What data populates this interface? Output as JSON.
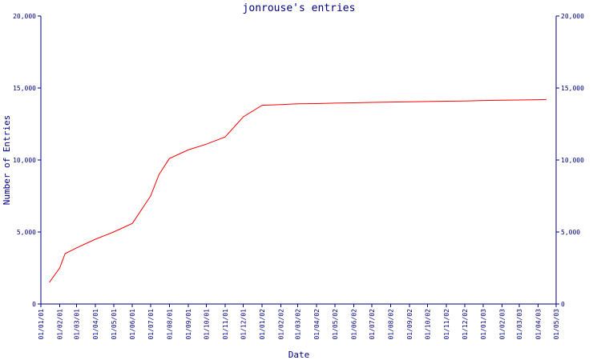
{
  "colors": {
    "axis": "#000080",
    "series": "#ff0000",
    "background": "#ffffff"
  },
  "chart_data": {
    "type": "line",
    "title": "jonrouse's entries",
    "xlabel": "Date",
    "ylabel": "Number of Entries",
    "ylim": [
      0,
      20000
    ],
    "y_ticks": [
      0,
      5000,
      10000,
      15000,
      20000
    ],
    "y_tick_labels": [
      "0",
      "5,000",
      "10,000",
      "15,000",
      "20,000"
    ],
    "y_right_tick_labels": [
      "0",
      "5,000",
      "10,000",
      "15,000",
      "20,000"
    ],
    "x_tick_labels": [
      "01/01/01",
      "01/02/01",
      "01/03/01",
      "01/04/01",
      "01/05/01",
      "01/06/01",
      "01/07/01",
      "01/08/01",
      "01/09/01",
      "01/10/01",
      "01/11/01",
      "01/12/01",
      "01/01/02",
      "01/02/02",
      "01/03/02",
      "01/04/02",
      "01/05/02",
      "01/06/02",
      "01/07/02",
      "01/08/02",
      "01/09/02",
      "01/10/02",
      "01/11/02",
      "01/12/02",
      "01/01/03",
      "01/02/03",
      "01/03/03",
      "01/04/03",
      "01/05/03"
    ],
    "grid": false,
    "series": [
      {
        "x": [
          "15/01/01",
          "01/02/01",
          "10/02/01",
          "01/03/01",
          "01/04/01",
          "01/05/01",
          "01/06/01",
          "01/07/01",
          "15/07/01",
          "01/08/01",
          "01/09/01",
          "01/10/01",
          "01/11/01",
          "01/12/01",
          "01/01/02",
          "01/02/02",
          "01/03/02",
          "01/04/02",
          "01/05/02",
          "01/06/02",
          "01/07/02",
          "01/08/02",
          "01/09/02",
          "01/10/02",
          "01/11/02",
          "01/12/02",
          "01/01/03",
          "01/02/03",
          "01/03/03",
          "01/04/03",
          "15/04/03"
        ],
        "values": [
          1500,
          2500,
          3500,
          3900,
          4500,
          5000,
          5600,
          7500,
          9000,
          10100,
          10700,
          11100,
          11600,
          13000,
          13800,
          13850,
          13900,
          13920,
          13950,
          13970,
          14000,
          14020,
          14040,
          14060,
          14080,
          14100,
          14130,
          14150,
          14170,
          14190,
          14200
        ]
      }
    ]
  }
}
